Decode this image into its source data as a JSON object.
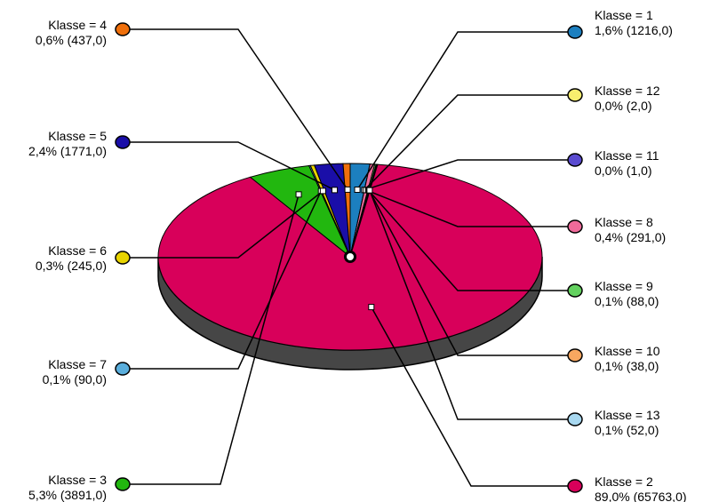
{
  "chart_data": {
    "type": "pie",
    "title": "",
    "slices": [
      {
        "label_line1": "Klasse = 1",
        "label_line2": "1,6% (1216,0)",
        "value": 1216,
        "color": "#1c7fbf"
      },
      {
        "label_line1": "Klasse = 12",
        "label_line2": "0,0% (2,0)",
        "value": 2,
        "color": "#f7ee6e"
      },
      {
        "label_line1": "Klasse = 11",
        "label_line2": "0,0% (1,0)",
        "value": 1,
        "color": "#5a4bd0"
      },
      {
        "label_line1": "Klasse = 8",
        "label_line2": "0,4% (291,0)",
        "value": 291,
        "color": "#ef6a9a"
      },
      {
        "label_line1": "Klasse = 9",
        "label_line2": "0,1% (88,0)",
        "value": 88,
        "color": "#63d15f"
      },
      {
        "label_line1": "Klasse = 10",
        "label_line2": "0,1% (38,0)",
        "value": 38,
        "color": "#f8a760"
      },
      {
        "label_line1": "Klasse = 13",
        "label_line2": "0,1% (52,0)",
        "value": 52,
        "color": "#a8d8f0"
      },
      {
        "label_line1": "Klasse = 2",
        "label_line2": "89,0% (65763,0)",
        "value": 65763,
        "color": "#d8005a"
      },
      {
        "label_line1": "Klasse = 3",
        "label_line2": "5,3% (3891,0)",
        "value": 3891,
        "color": "#22b70f"
      },
      {
        "label_line1": "Klasse = 7",
        "label_line2": "0,1% (90,0)",
        "value": 90,
        "color": "#5aaedc"
      },
      {
        "label_line1": "Klasse = 6",
        "label_line2": "0,3% (245,0)",
        "value": 245,
        "color": "#e8d400"
      },
      {
        "label_line1": "Klasse = 5",
        "label_line2": "2,4% (1771,0)",
        "value": 1771,
        "color": "#1a0ea8"
      },
      {
        "label_line1": "Klasse = 4",
        "label_line2": "0,6% (437,0)",
        "value": 437,
        "color": "#ef6f0b"
      }
    ],
    "legend": "callouts around pie"
  }
}
